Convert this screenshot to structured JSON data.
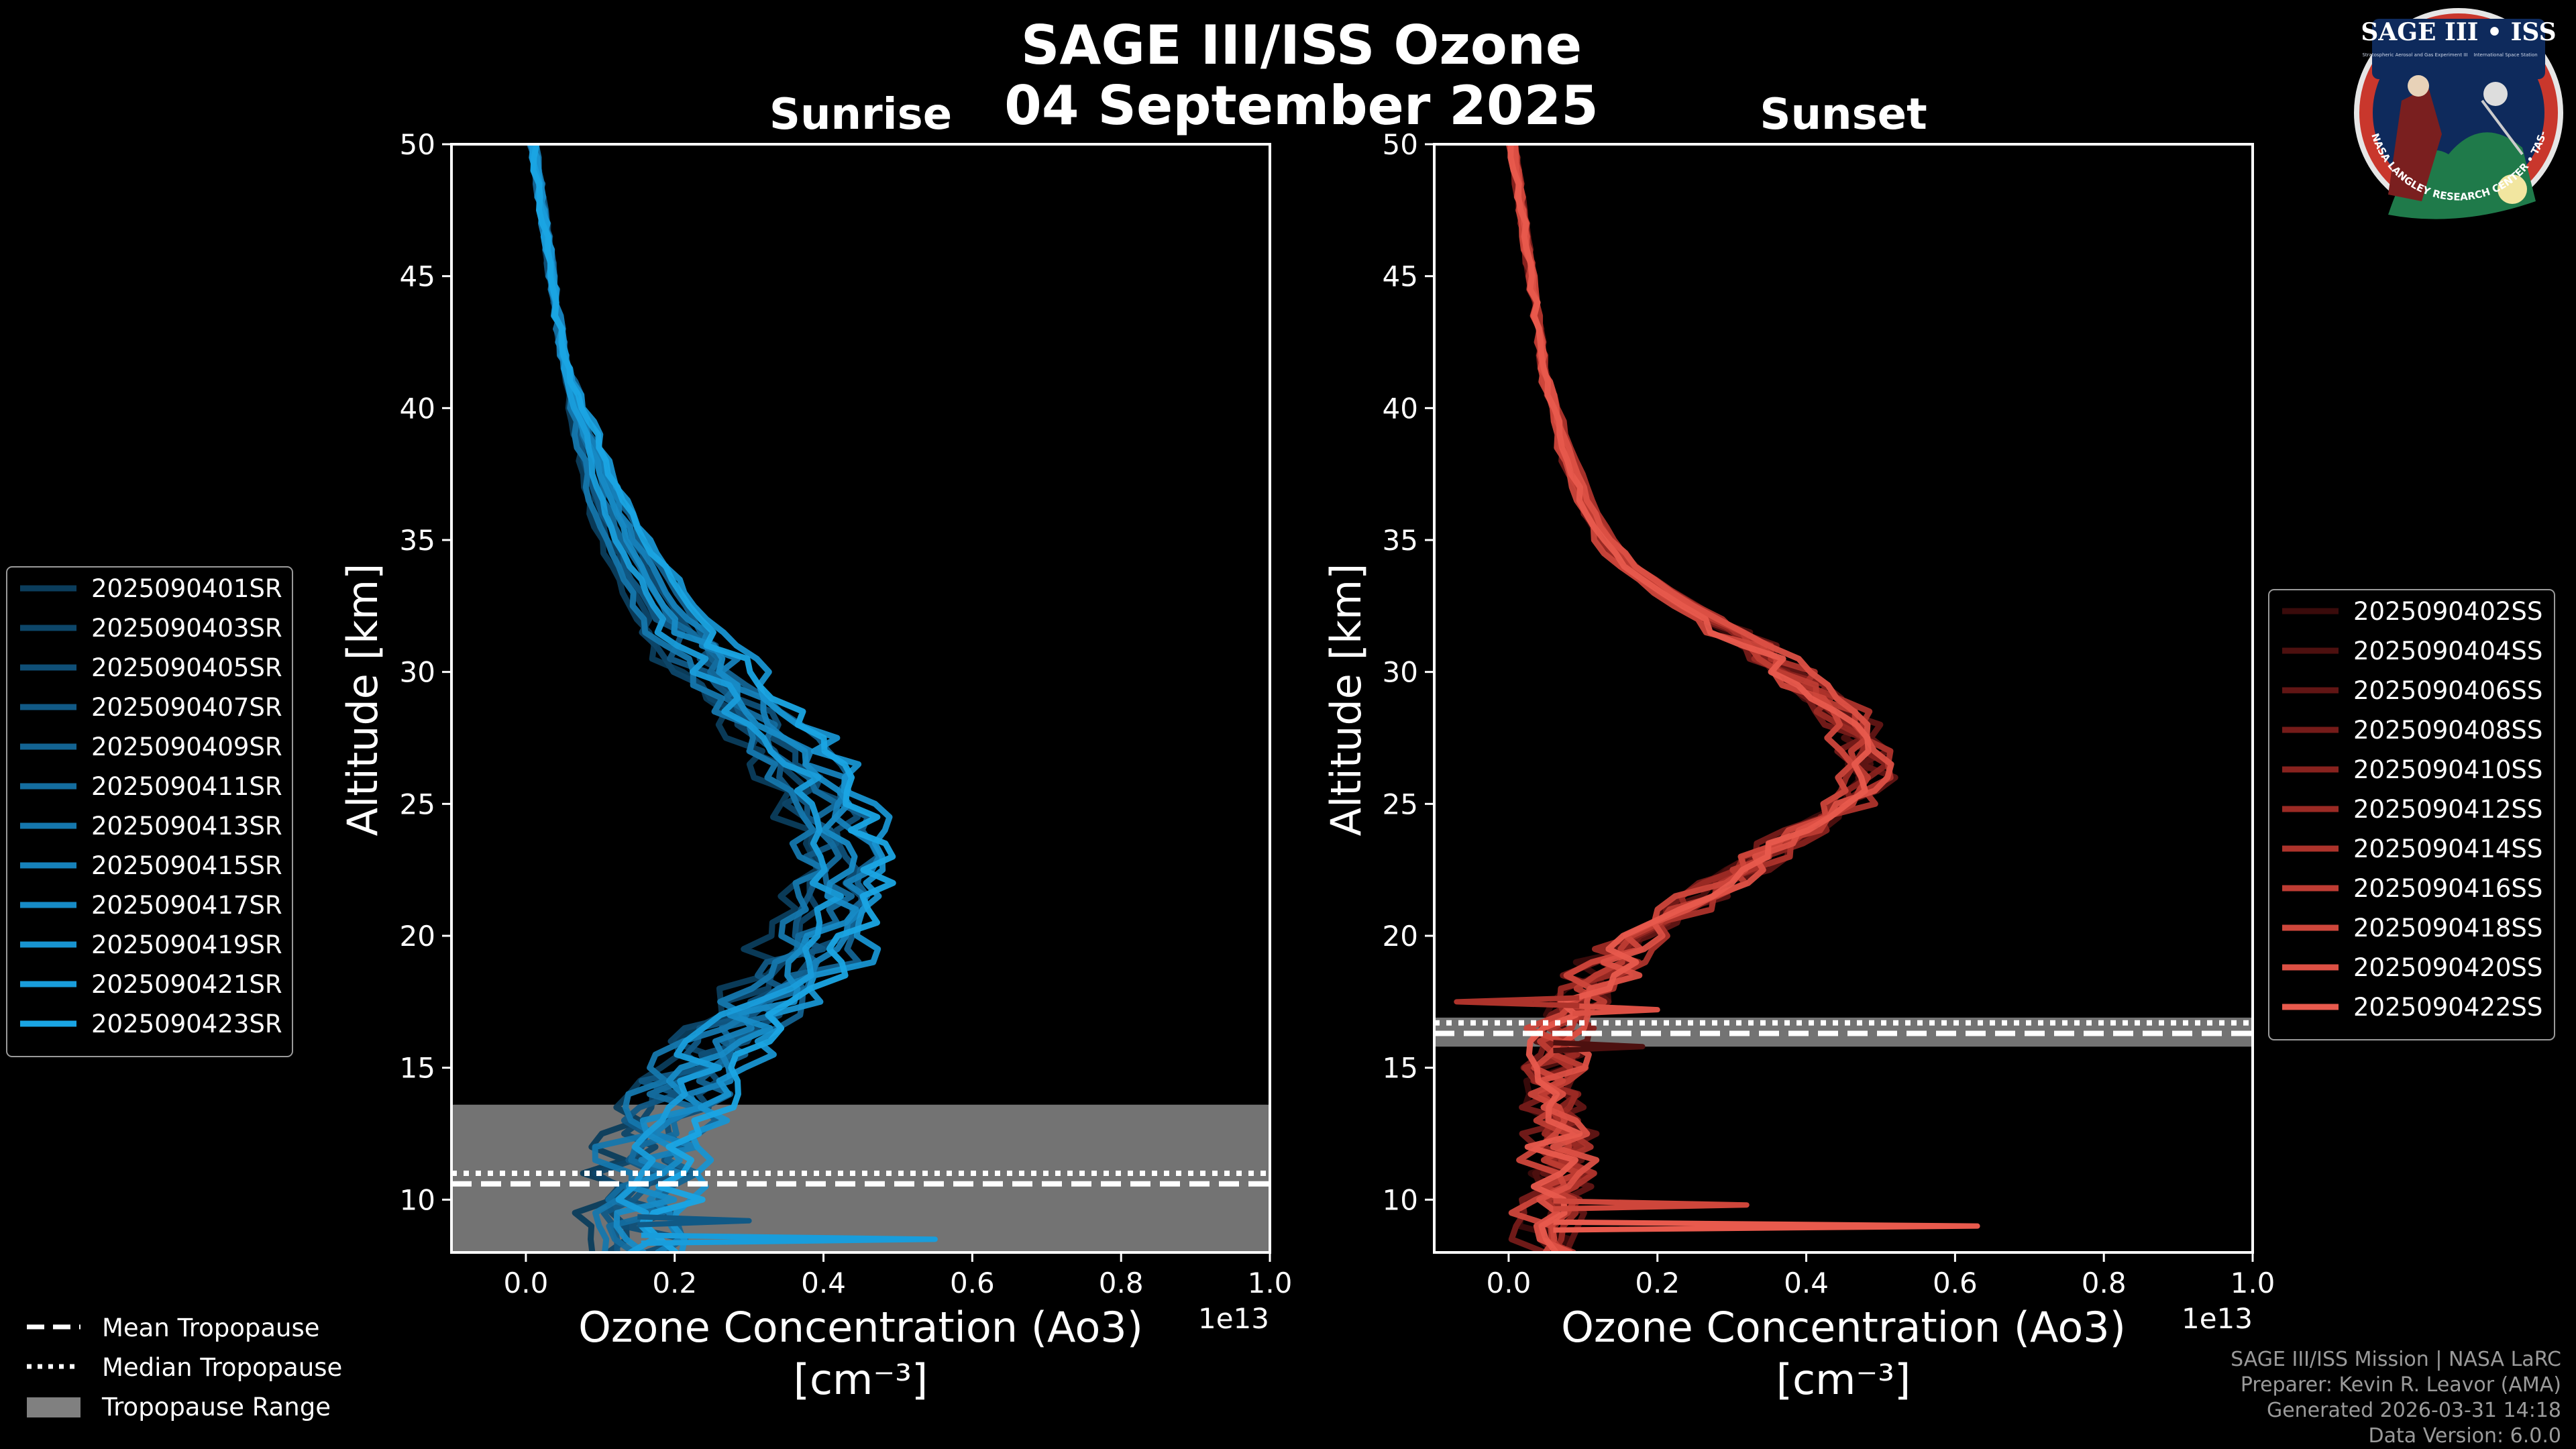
{
  "title_line1": "SAGE III/ISS Ozone",
  "title_line2": "04 September 2025",
  "logo": {
    "name_text": "SAGE III • ISS",
    "sub_left": "Stratospheric Aerosol and Gas Experiment III",
    "sub_right": "International Space Station",
    "ring_text": "BALL • NASA LANGLEY RESEARCH CENTER • TAS-I • ESA"
  },
  "footer": {
    "line1": "SAGE III/ISS Mission | NASA LaRC",
    "line2": "Preparer: Kevin R. Leavor (AMA)",
    "line3": "Generated 2026-03-31 14:18",
    "line4": "Data Version: 6.0.0"
  },
  "tropopause_legend": [
    {
      "label": "Mean Tropopause",
      "style": "dashed"
    },
    {
      "label": "Median Tropopause",
      "style": "dotted"
    },
    {
      "label": "Tropopause Range",
      "style": "patch"
    }
  ],
  "chart_data": [
    {
      "type": "line",
      "title": "Sunrise",
      "xlabel": "Ozone Concentration (Ao3)",
      "xunit": "[cm⁻³]",
      "ylabel": "Altitude [km]",
      "xlim": [
        -0.1,
        1.0
      ],
      "ylim": [
        8,
        50
      ],
      "x_offset_label": "1e13",
      "xticks": [
        0.0,
        0.2,
        0.4,
        0.6,
        0.8,
        1.0
      ],
      "xtick_labels": [
        "0.0",
        "0.2",
        "0.4",
        "0.6",
        "0.8",
        "1.0"
      ],
      "yticks": [
        10,
        15,
        20,
        25,
        30,
        35,
        40,
        45,
        50
      ],
      "yticks_labels": [
        "10",
        "15",
        "20",
        "25",
        "30",
        "35",
        "40",
        "45",
        "50"
      ],
      "color": "#1a8fd0",
      "tropopause": {
        "mean": 10.6,
        "median": 11.0,
        "min": 8.0,
        "max": 13.6
      },
      "base_profile": {
        "alt": [
          8,
          9,
          10,
          11,
          12,
          13,
          14,
          15,
          16,
          17,
          18,
          19,
          20,
          21,
          22,
          23,
          24,
          25,
          26,
          27,
          28,
          29,
          30,
          31,
          32,
          33,
          34,
          35,
          36,
          37,
          38,
          39,
          40,
          41,
          42,
          43,
          44,
          45,
          46,
          47,
          48,
          49,
          50
        ],
        "val": [
          0.16,
          0.15,
          0.15,
          0.16,
          0.17,
          0.18,
          0.2,
          0.23,
          0.26,
          0.3,
          0.34,
          0.37,
          0.39,
          0.41,
          0.42,
          0.42,
          0.41,
          0.4,
          0.38,
          0.35,
          0.32,
          0.28,
          0.25,
          0.22,
          0.19,
          0.17,
          0.15,
          0.13,
          0.115,
          0.1,
          0.09,
          0.08,
          0.07,
          0.06,
          0.05,
          0.045,
          0.04,
          0.035,
          0.03,
          0.025,
          0.02,
          0.015,
          0.01
        ]
      },
      "series": [
        {
          "name": "2025090401SR",
          "shift": -0.05,
          "color": "#0b3d5c"
        },
        {
          "name": "2025090403SR",
          "shift": -0.03,
          "color": "#0d4669"
        },
        {
          "name": "2025090405SR",
          "shift": 0.02,
          "color": "#0f4f77"
        },
        {
          "name": "2025090407SR",
          "shift": -0.02,
          "color": "#115985"
        },
        {
          "name": "2025090409SR",
          "shift": 0.04,
          "color": "#136392"
        },
        {
          "name": "2025090411SR",
          "shift": 0.0,
          "color": "#146d9f"
        },
        {
          "name": "2025090413SR",
          "shift": -0.04,
          "color": "#1577ad"
        },
        {
          "name": "2025090415SR",
          "shift": 0.03,
          "color": "#1681ba"
        },
        {
          "name": "2025090417SR",
          "shift": 0.01,
          "color": "#178bc6"
        },
        {
          "name": "2025090419SR",
          "shift": 0.06,
          "color": "#1894d1"
        },
        {
          "name": "2025090421SR",
          "shift": -0.01,
          "color": "#199ddb"
        },
        {
          "name": "2025090423SR",
          "shift": 0.05,
          "color": "#1aa5e4"
        }
      ]
    },
    {
      "type": "line",
      "title": "Sunset",
      "xlabel": "Ozone Concentration (Ao3)",
      "xunit": "[cm⁻³]",
      "ylabel": "Altitude [km]",
      "xlim": [
        -0.1,
        1.0
      ],
      "ylim": [
        8,
        50
      ],
      "x_offset_label": "1e13",
      "xticks": [
        0.0,
        0.2,
        0.4,
        0.6,
        0.8,
        1.0
      ],
      "xtick_labels": [
        "0.0",
        "0.2",
        "0.4",
        "0.6",
        "0.8",
        "1.0"
      ],
      "yticks": [
        10,
        15,
        20,
        25,
        30,
        35,
        40,
        45,
        50
      ],
      "yticks_labels": [
        "10",
        "15",
        "20",
        "25",
        "30",
        "35",
        "40",
        "45",
        "50"
      ],
      "color": "#e8564a",
      "tropopause": {
        "mean": 16.3,
        "median": 16.7,
        "min": 15.8,
        "max": 16.9
      },
      "base_profile": {
        "alt": [
          8,
          9,
          10,
          11,
          12,
          13,
          14,
          15,
          16,
          17,
          18,
          19,
          20,
          21,
          22,
          23,
          24,
          25,
          26,
          27,
          28,
          29,
          30,
          31,
          32,
          33,
          34,
          35,
          36,
          37,
          38,
          39,
          40,
          41,
          42,
          43,
          44,
          45,
          46,
          47,
          48,
          49,
          50
        ],
        "val": [
          0.05,
          0.06,
          0.06,
          0.07,
          0.07,
          0.07,
          0.06,
          0.06,
          0.06,
          0.08,
          0.11,
          0.14,
          0.18,
          0.23,
          0.29,
          0.34,
          0.4,
          0.45,
          0.48,
          0.48,
          0.46,
          0.42,
          0.38,
          0.33,
          0.27,
          0.21,
          0.16,
          0.13,
          0.11,
          0.095,
          0.08,
          0.07,
          0.06,
          0.05,
          0.045,
          0.04,
          0.035,
          0.03,
          0.025,
          0.02,
          0.015,
          0.01,
          0.005
        ]
      },
      "series": [
        {
          "name": "2025090402SS",
          "shift": -0.01,
          "color": "#3a0b0b"
        },
        {
          "name": "2025090404SS",
          "shift": 0.0,
          "color": "#4d100f"
        },
        {
          "name": "2025090406SS",
          "shift": 0.015,
          "color": "#611514"
        },
        {
          "name": "2025090408SS",
          "shift": -0.015,
          "color": "#751b19"
        },
        {
          "name": "2025090410SS",
          "shift": 0.01,
          "color": "#88221e"
        },
        {
          "name": "2025090412SS",
          "shift": -0.005,
          "color": "#9b2a24"
        },
        {
          "name": "2025090414SS",
          "shift": 0.02,
          "color": "#ad332b"
        },
        {
          "name": "2025090416SS",
          "shift": 0.005,
          "color": "#be3c33"
        },
        {
          "name": "2025090418SS",
          "shift": -0.02,
          "color": "#ce463b"
        },
        {
          "name": "2025090420SS",
          "shift": 0.012,
          "color": "#dc5044"
        },
        {
          "name": "2025090422SS",
          "shift": -0.008,
          "color": "#e85a4d"
        }
      ]
    }
  ]
}
